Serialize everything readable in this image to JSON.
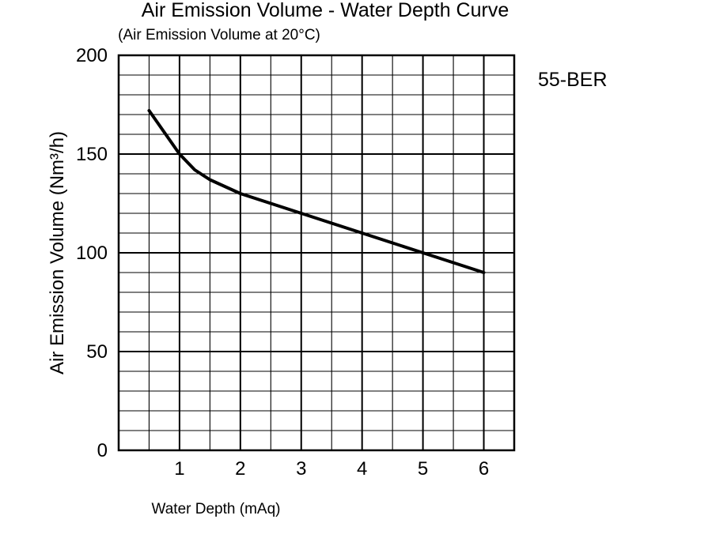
{
  "chart_data": {
    "type": "line",
    "title": "Air Emission Volume - Water Depth Curve",
    "subtitle": "(Air Emission Volume at 20°C)",
    "xlabel": "Water Depth (mAq)",
    "ylabel": "Air Emission Volume (Nm³/h)",
    "annotation": "55-BER",
    "xlim": [
      0,
      6.5
    ],
    "ylim": [
      0,
      200
    ],
    "x_ticks": [
      1,
      2,
      3,
      4,
      5,
      6
    ],
    "y_ticks": [
      0,
      50,
      100,
      150,
      200
    ],
    "grid": true,
    "series": [
      {
        "x": [
          0.5,
          0.75,
          1.0,
          1.25,
          1.5,
          2.0,
          2.5,
          3.0,
          3.5,
          4.0,
          4.5,
          5.0,
          5.5,
          6.0
        ],
        "values": [
          172,
          161,
          150,
          142,
          137,
          130,
          125,
          120,
          115,
          110,
          105,
          100,
          95,
          90
        ]
      }
    ],
    "line_color": "#000000"
  }
}
